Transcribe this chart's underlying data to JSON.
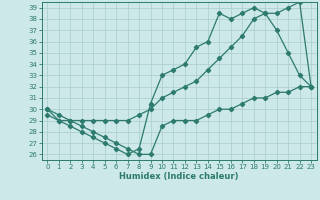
{
  "line1_x": [
    0,
    1,
    2,
    3,
    4,
    5,
    6,
    7,
    8,
    9,
    10,
    11,
    12,
    13,
    14,
    15,
    16,
    17,
    18,
    19,
    20,
    21,
    22,
    23
  ],
  "line1_y": [
    30,
    29,
    28.5,
    28,
    27.5,
    27,
    26.5,
    26,
    26.5,
    30.5,
    33,
    33.5,
    34,
    35.5,
    36,
    38.5,
    38,
    38.5,
    39,
    38.5,
    37,
    35,
    33,
    32
  ],
  "line2_x": [
    0,
    1,
    2,
    3,
    4,
    5,
    6,
    7,
    8,
    9,
    10,
    11,
    12,
    13,
    14,
    15,
    16,
    17,
    18,
    19,
    20,
    21,
    22,
    23
  ],
  "line2_y": [
    30,
    29.5,
    29,
    29,
    29,
    29,
    29,
    29,
    29.5,
    30,
    31,
    31.5,
    32,
    32.5,
    33.5,
    34.5,
    35.5,
    36.5,
    38,
    38.5,
    38.5,
    39,
    39.5,
    32
  ],
  "line3_x": [
    0,
    1,
    2,
    3,
    4,
    5,
    6,
    7,
    8,
    9,
    10,
    11,
    12,
    13,
    14,
    15,
    16,
    17,
    18,
    19,
    20,
    21,
    22,
    23
  ],
  "line3_y": [
    29.5,
    29,
    29,
    28.5,
    28,
    27.5,
    27,
    26.5,
    26,
    26,
    28.5,
    29,
    29,
    29,
    29.5,
    30,
    30,
    30.5,
    31,
    31,
    31.5,
    31.5,
    32,
    32
  ],
  "color": "#2d7a6e",
  "bg_color": "#cce8e8",
  "grid_color": "#aacccc",
  "ylim_min": 26,
  "ylim_max": 39,
  "xlim_min": 0,
  "xlim_max": 23,
  "yticks": [
    26,
    27,
    28,
    29,
    30,
    31,
    32,
    33,
    34,
    35,
    36,
    37,
    38,
    39
  ],
  "xticks": [
    0,
    1,
    2,
    3,
    4,
    5,
    6,
    7,
    8,
    9,
    10,
    11,
    12,
    13,
    14,
    15,
    16,
    17,
    18,
    19,
    20,
    21,
    22,
    23
  ],
  "xlabel": "Humidex (Indice chaleur)",
  "marker": "D",
  "marker_size": 2.2,
  "linewidth": 0.9,
  "tick_fontsize": 5.0,
  "xlabel_fontsize": 6.0
}
